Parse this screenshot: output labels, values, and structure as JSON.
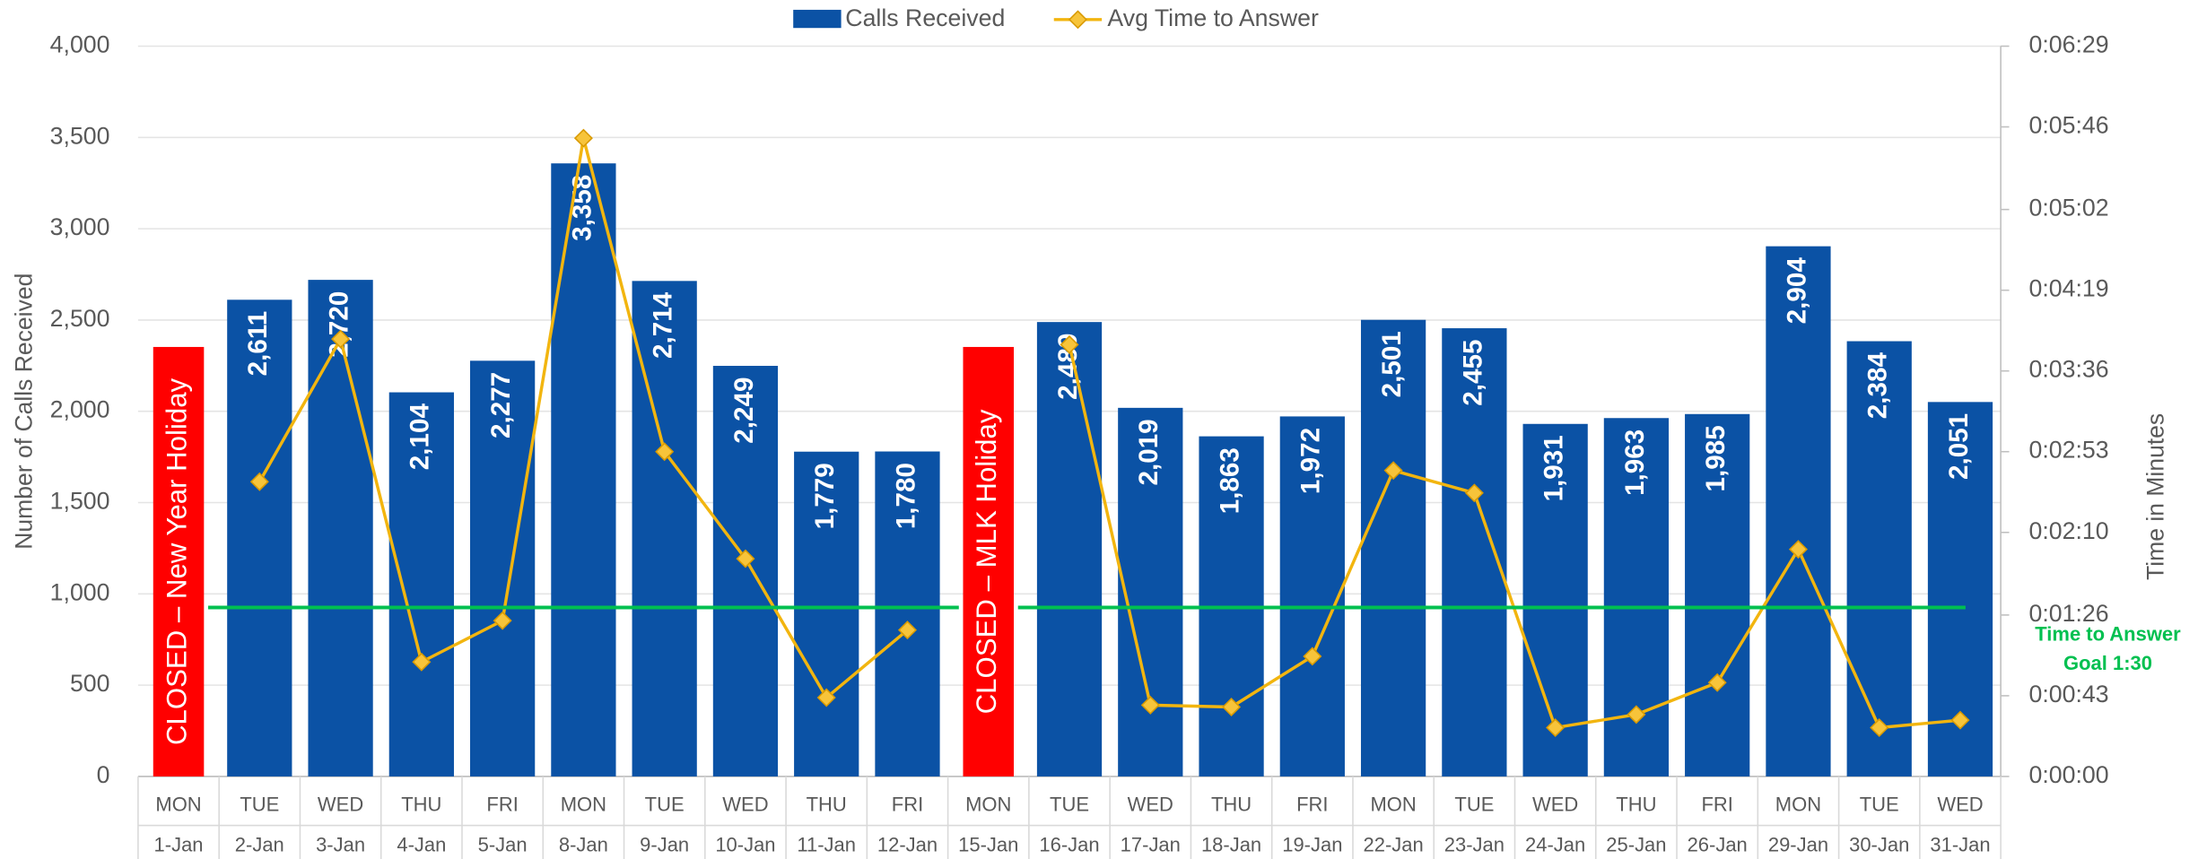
{
  "chart_data": {
    "type": "bar",
    "categories": [
      "1-Jan",
      "2-Jan",
      "3-Jan",
      "4-Jan",
      "5-Jan",
      "8-Jan",
      "9-Jan",
      "10-Jan",
      "11-Jan",
      "12-Jan",
      "15-Jan",
      "16-Jan",
      "17-Jan",
      "18-Jan",
      "19-Jan",
      "22-Jan",
      "23-Jan",
      "24-Jan",
      "25-Jan",
      "26-Jan",
      "29-Jan",
      "30-Jan",
      "31-Jan"
    ],
    "weekdays": [
      "MON",
      "TUE",
      "WED",
      "THU",
      "FRI",
      "MON",
      "TUE",
      "WED",
      "THU",
      "FRI",
      "MON",
      "TUE",
      "WED",
      "THU",
      "FRI",
      "MON",
      "TUE",
      "WED",
      "THU",
      "FRI",
      "MON",
      "TUE",
      "WED"
    ],
    "series": [
      {
        "name": "Calls Received",
        "type": "bar",
        "color": "#0b52a5",
        "values": [
          null,
          2611,
          2720,
          2104,
          2277,
          3358,
          2714,
          2249,
          1779,
          1780,
          null,
          2489,
          2019,
          1863,
          1972,
          2501,
          2455,
          1931,
          1963,
          1985,
          2904,
          2384,
          2051
        ],
        "value_labels": [
          null,
          "2,611",
          "2,720",
          "2,104",
          "2,277",
          "3,358",
          "2,714",
          "2,249",
          "1,779",
          "1,780",
          null,
          "2,489",
          "2,019",
          "1,863",
          "1,972",
          "2,501",
          "2,455",
          "1,931",
          "1,963",
          "1,985",
          "2,904",
          "2,384",
          "2,051"
        ]
      },
      {
        "name": "Avg Time to Answer",
        "type": "line",
        "axis": "y2",
        "color": "#f2b50f",
        "values": [
          null,
          157,
          233,
          61,
          83,
          340,
          173,
          116,
          42,
          78,
          null,
          230,
          38,
          37,
          64,
          163,
          151,
          26,
          33,
          50,
          121,
          26,
          30
        ]
      }
    ],
    "ylabel": "Number of Calls Received",
    "y2label": "Time in Minutes",
    "ylim": [
      0,
      4000
    ],
    "yticks": [
      0,
      500,
      {
        "value": 1000,
        "label": "1,000"
      },
      {
        "value": 1500,
        "label": "1,500"
      },
      {
        "value": 2000,
        "label": "2,000"
      },
      {
        "value": 2500,
        "label": "2,500"
      },
      {
        "value": 3000,
        "label": "3,000"
      },
      {
        "value": 3500,
        "label": "3,500"
      },
      {
        "value": 4000,
        "label": "4,000"
      }
    ],
    "y2lim": [
      0,
      389
    ],
    "y2ticks": [
      {
        "value": 0,
        "label": "0:00:00"
      },
      {
        "value": 43,
        "label": "0:00:43"
      },
      {
        "value": 86,
        "label": "0:01:26"
      },
      {
        "value": 130,
        "label": "0:02:10"
      },
      {
        "value": 173,
        "label": "0:02:53"
      },
      {
        "value": 216,
        "label": "0:03:36"
      },
      {
        "value": 259,
        "label": "0:04:19"
      },
      {
        "value": 302,
        "label": "0:05:02"
      },
      {
        "value": 346,
        "label": "0:05:46"
      },
      {
        "value": 389,
        "label": "0:06:29"
      }
    ],
    "grid": true,
    "legend": "top",
    "goal": {
      "value": 90,
      "color": "#00c050",
      "label": [
        "Time to Answer",
        "Goal 1:30"
      ]
    },
    "annotations": [
      {
        "x": "1-Jan",
        "text": "CLOSED – New Year Holiday",
        "color": "#ff0000"
      },
      {
        "x": "15-Jan",
        "text": "CLOSED – MLK Holiday",
        "color": "#ff0000"
      }
    ]
  }
}
